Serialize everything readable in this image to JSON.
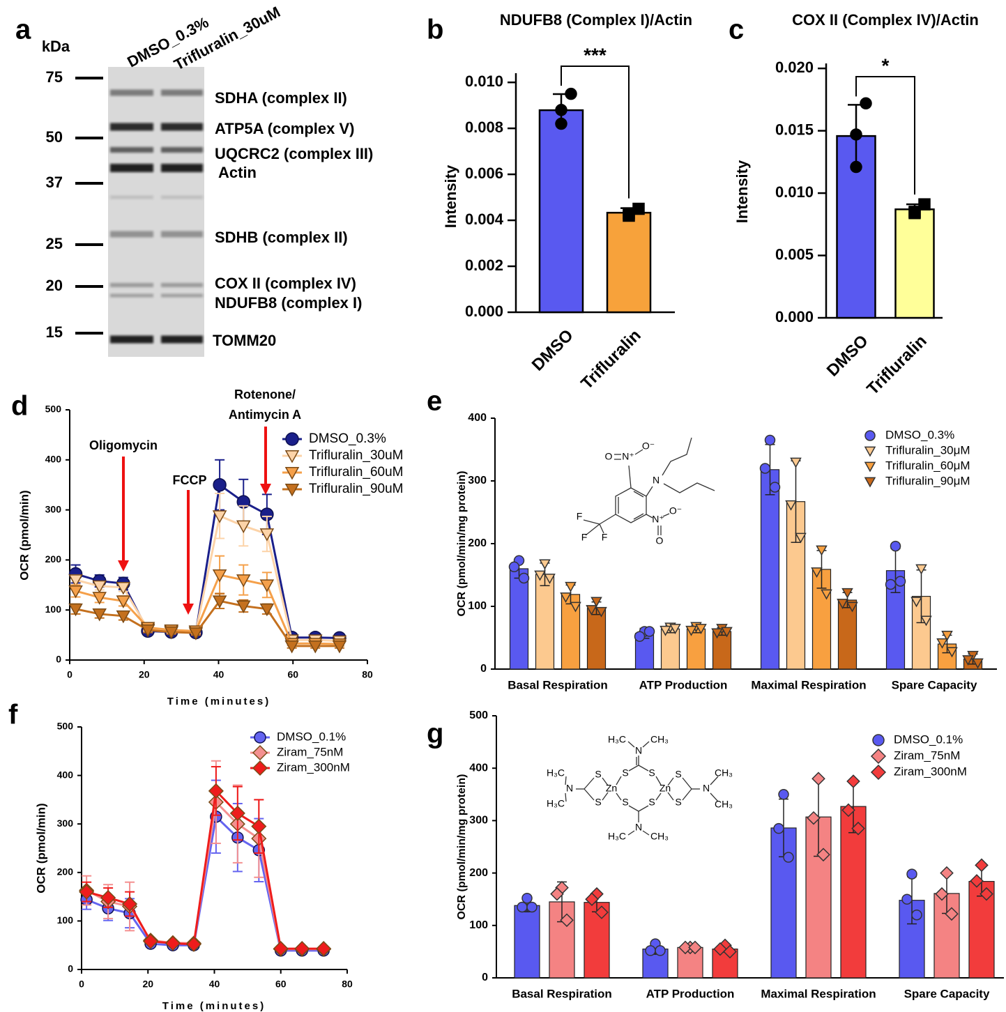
{
  "panel_labels": [
    "a",
    "b",
    "c",
    "d",
    "e",
    "f",
    "g"
  ],
  "blot": {
    "unit": "kDa",
    "lanes": [
      "DMSO_0.3%",
      "Trifluralin_30uM"
    ],
    "markers": [
      75,
      50,
      37,
      25,
      20,
      15
    ],
    "bands": [
      "SDHA (complex II)",
      "ATP5A (complex V)",
      "UQCRC2 (complex III)",
      "Actin",
      "SDHB (complex II)",
      "COX II (complex IV)",
      "NDUFB8 (complex I)",
      "TOMM20"
    ]
  },
  "chart_data": [
    {
      "type": "bar",
      "title": "NDUFB8 (Complex I)/Actin",
      "ylabel": "Intensity",
      "categories": [
        "DMSO",
        "Trifluralin"
      ],
      "values": [
        0.00879,
        0.00433
      ],
      "errors": [
        0.0007,
        0.0002
      ],
      "points": [
        [
          0.0095,
          0.0088,
          0.0082
        ],
        [
          0.0045,
          0.0043,
          0.0042
        ]
      ],
      "colors": [
        "#5959f0",
        "#f7a23b"
      ],
      "markers": [
        "circle",
        "square"
      ],
      "annotation": "***",
      "ylim": [
        0,
        0.0104
      ],
      "yticks": [
        {
          "value": 0,
          "label": "0.000"
        },
        {
          "value": 0.002,
          "label": "0.002"
        },
        {
          "value": 0.004,
          "label": "0.004"
        },
        {
          "value": 0.006,
          "label": "0.006"
        },
        {
          "value": 0.008,
          "label": "0.008"
        },
        {
          "value": 0.01,
          "label": "0.010"
        }
      ]
    },
    {
      "type": "bar",
      "title": "COX II (Complex IV)/Actin",
      "ylabel": "Intensity",
      "categories": [
        "DMSO",
        "Trifluralin"
      ],
      "values": [
        0.01458,
        0.0087
      ],
      "errors": [
        0.0025,
        0.0004
      ],
      "points": [
        [
          0.0172,
          0.0147,
          0.0121
        ],
        [
          0.0091,
          0.0085,
          0.0084
        ]
      ],
      "colors": [
        "#5959f0",
        "#ffff99"
      ],
      "markers": [
        "circle",
        "square"
      ],
      "annotation": "*",
      "ylim": [
        0,
        0.0204
      ],
      "yticks": [
        {
          "value": 0,
          "label": "0.000"
        },
        {
          "value": 0.005,
          "label": "0.005"
        },
        {
          "value": 0.01,
          "label": "0.010"
        },
        {
          "value": 0.015,
          "label": "0.015"
        },
        {
          "value": 0.02,
          "label": "0.020"
        }
      ]
    },
    {
      "type": "line",
      "xlabel": "Time (minutes)",
      "ylabel": "OCR (pmol/min)",
      "x": [
        1.6,
        8,
        14.4,
        21,
        27.3,
        33.9,
        40.3,
        46.7,
        53,
        59.7,
        66,
        72.5
      ],
      "series": [
        {
          "name": "DMSO_0.3%",
          "color": "#1a1f8a",
          "marker": "circle",
          "values": [
            172,
            158,
            153,
            58,
            56,
            55,
            350,
            316,
            291,
            45,
            45,
            44
          ],
          "errors": [
            18,
            12,
            12,
            5,
            4,
            4,
            50,
            45,
            40,
            5,
            5,
            5
          ]
        },
        {
          "name": "Trifluralin_30uM",
          "color": "#fcd3a8",
          "marker": "triangle-down",
          "values": [
            160,
            148,
            145,
            62,
            58,
            57,
            288,
            268,
            252,
            40,
            40,
            38
          ],
          "errors": [
            10,
            8,
            8,
            4,
            4,
            4,
            45,
            40,
            35,
            5,
            4,
            4
          ]
        },
        {
          "name": "Trifluralin_60uM",
          "color": "#f5a04a",
          "marker": "triangle-down",
          "values": [
            138,
            125,
            118,
            65,
            60,
            58,
            170,
            160,
            150,
            33,
            33,
            32
          ],
          "errors": [
            12,
            10,
            10,
            5,
            4,
            4,
            38,
            30,
            25,
            4,
            4,
            4
          ]
        },
        {
          "name": "Trifluralin_90uM",
          "color": "#c4701e",
          "marker": "triangle-down",
          "values": [
            102,
            92,
            88,
            60,
            56,
            54,
            118,
            108,
            102,
            28,
            28,
            28
          ],
          "errors": [
            10,
            8,
            8,
            5,
            4,
            4,
            15,
            12,
            10,
            4,
            4,
            4
          ]
        }
      ],
      "annotations": [
        "Oligomycin",
        "FCCP",
        "Rotenone/",
        "Antimycin A"
      ],
      "xlim": [
        0,
        80
      ],
      "xticks": [
        0,
        20,
        40,
        60,
        80
      ],
      "ylim": [
        0,
        500
      ],
      "yticks": [
        0,
        100,
        200,
        300,
        400,
        500
      ],
      "legend": "upper right"
    },
    {
      "type": "bar",
      "ylabel": "OCR (pmol/min/mg protein)",
      "categories": [
        "Basal Respiration",
        "ATP Production",
        "Maximal Respiration",
        "Spare Capacity"
      ],
      "series": [
        {
          "name": "DMSO_0.3%",
          "color": "#5959f0",
          "marker": "circle",
          "values": [
            160,
            57,
            318,
            157
          ],
          "errors": [
            15,
            8,
            40,
            35
          ],
          "points": [
            [
              173,
              163,
              145
            ],
            [
              60,
              52,
              60
            ],
            [
              365,
              320,
              290
            ],
            [
              196,
              135,
              140
            ]
          ]
        },
        {
          "name": "Trifluralin_30μM",
          "color": "#fcc98f",
          "marker": "triangle-down",
          "values": [
            151,
            64,
            267,
            116
          ],
          "errors": [
            18,
            6,
            65,
            42
          ],
          "points": [
            [
              168,
              150,
              145
            ],
            [
              67,
              62,
              65
            ],
            [
              330,
              262,
              210
            ],
            [
              160,
              108,
              78
            ]
          ]
        },
        {
          "name": "Trifluralin_60μM",
          "color": "#f8a040",
          "marker": "triangle-down",
          "values": [
            119,
            64,
            159,
            40
          ],
          "errors": [
            15,
            6,
            30,
            14
          ],
          "points": [
            [
              132,
              115,
              100
            ],
            [
              68,
              62,
              65
            ],
            [
              190,
              155,
              120
            ],
            [
              54,
              42,
              28
            ]
          ]
        },
        {
          "name": "Trifluralin_90μM",
          "color": "#c8681a",
          "marker": "triangle-down",
          "values": [
            97,
            60,
            110,
            16
          ],
          "errors": [
            10,
            6,
            12,
            8
          ],
          "points": [
            [
              108,
              95,
              92
            ],
            [
              65,
              58,
              60
            ],
            [
              122,
              105,
              100
            ],
            [
              22,
              15,
              10
            ]
          ]
        }
      ],
      "structure_labels": [
        "O",
        "N⁺",
        "O⁻",
        "N",
        "N⁺",
        "O⁻",
        "O",
        "F",
        "F",
        "F"
      ],
      "ylim": [
        0,
        400
      ],
      "yticks": [
        0,
        100,
        200,
        300,
        400
      ],
      "legend": "upper right"
    },
    {
      "type": "line",
      "xlabel": "Time (minutes)",
      "ylabel": "OCR (pmol/min)",
      "x": [
        1.5,
        8,
        14.5,
        20.8,
        27.5,
        33.8,
        40.5,
        47,
        53.4,
        60,
        66.4,
        72.9
      ],
      "series": [
        {
          "name": "DMSO_0.1%",
          "color": "#6464f0",
          "marker": "circle",
          "values": [
            144,
            126,
            116,
            53,
            50,
            50,
            315,
            272,
            246,
            39,
            39,
            39
          ],
          "errors": [
            20,
            25,
            30,
            5,
            4,
            4,
            75,
            70,
            65,
            4,
            4,
            4
          ]
        },
        {
          "name": "Ziram_75nM",
          "color": "#f49090",
          "marker": "diamond",
          "values": [
            163,
            140,
            130,
            60,
            55,
            54,
            345,
            300,
            270,
            42,
            42,
            42
          ],
          "errors": [
            30,
            35,
            50,
            5,
            4,
            4,
            85,
            80,
            80,
            4,
            4,
            4
          ]
        },
        {
          "name": "Ziram_300nM",
          "color": "#ee1c1c",
          "marker": "diamond",
          "values": [
            160,
            148,
            135,
            58,
            54,
            52,
            368,
            322,
            295,
            43,
            43,
            43
          ],
          "errors": [
            20,
            20,
            25,
            5,
            4,
            4,
            50,
            55,
            55,
            4,
            4,
            4
          ]
        }
      ],
      "xlim": [
        0,
        80
      ],
      "xticks": [
        0,
        20,
        40,
        60,
        80
      ],
      "ylim": [
        0,
        500
      ],
      "yticks": [
        0,
        100,
        200,
        300,
        400,
        500
      ],
      "legend": "upper right"
    },
    {
      "type": "bar",
      "ylabel": "OCR (pmol/min/mg protein)",
      "categories": [
        "Basal Respiration",
        "ATP Production",
        "Maximal Respiration",
        "Spare Capacity"
      ],
      "series": [
        {
          "name": "DMSO_0.1%",
          "color": "#5959f0",
          "marker": "circle",
          "values": [
            138,
            55,
            286,
            148
          ],
          "errors": [
            12,
            10,
            55,
            45
          ],
          "points": [
            [
              152,
              135,
              135
            ],
            [
              65,
              52,
              52
            ],
            [
              350,
              285,
              230
            ],
            [
              198,
              150,
              120
            ]
          ]
        },
        {
          "name": "Ziram_75nM",
          "color": "#f48383",
          "marker": "diamond",
          "values": [
            145,
            58,
            307,
            161
          ],
          "errors": [
            38,
            4,
            75,
            38
          ],
          "points": [
            [
              172,
              160,
              110
            ],
            [
              58,
              58,
              58
            ],
            [
              380,
              305,
              235
            ],
            [
              200,
              160,
              122
            ]
          ]
        },
        {
          "name": "Ziram_300nM",
          "color": "#f23c3c",
          "marker": "diamond",
          "values": [
            144,
            55,
            327,
            184
          ],
          "errors": [
            18,
            6,
            50,
            28
          ],
          "points": [
            [
              160,
              150,
              125
            ],
            [
              62,
              55,
              50
            ],
            [
              375,
              320,
              285
            ],
            [
              215,
              185,
              160
            ]
          ]
        }
      ],
      "structure_labels": [
        "H₃C",
        "CH₃",
        "N",
        "S",
        "S",
        "H₃C",
        "N",
        "H₃C",
        "S",
        "S",
        "Zn",
        "Zn",
        "S",
        "S",
        "N",
        "CH₃",
        "CH₃",
        "S",
        "S",
        "N",
        "H₃C",
        "CH₃"
      ],
      "ylim": [
        0,
        500
      ],
      "yticks": [
        0,
        100,
        200,
        300,
        400,
        500
      ],
      "legend": "upper right"
    }
  ]
}
